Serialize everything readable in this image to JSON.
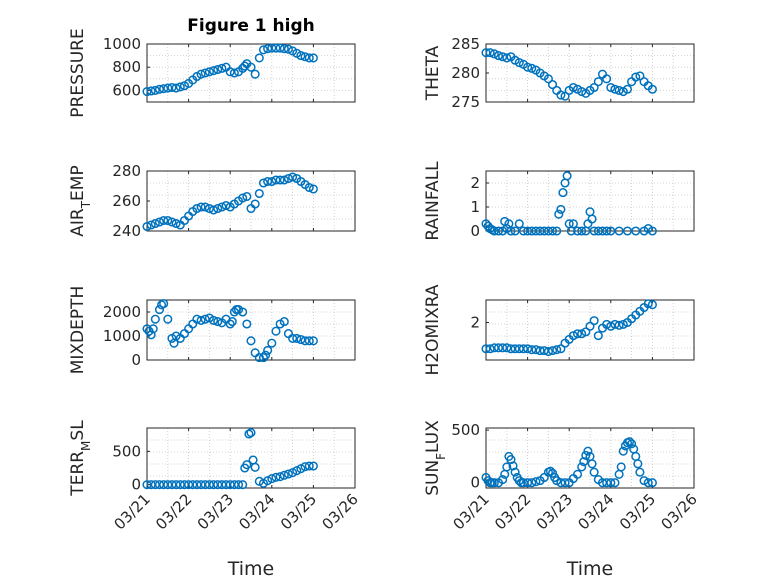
{
  "figure": {
    "title": "Figure 1 high",
    "marker_color": "#0072bd",
    "axes_color": "#262626",
    "grid_color": "#c8c8c8"
  },
  "chart_data": [
    {
      "type": "scatter",
      "ylabel": "PRESSURE",
      "ylim": [
        500,
        1000
      ],
      "yticks": [
        600,
        800,
        1000
      ],
      "xlim": [
        0,
        5
      ],
      "xticks": [],
      "title": "Figure 1 high",
      "series": [
        {
          "name": "PRESSURE",
          "x": [
            0,
            0.1,
            0.2,
            0.3,
            0.4,
            0.5,
            0.6,
            0.7,
            0.8,
            0.9,
            1.0,
            1.1,
            1.2,
            1.3,
            1.4,
            1.5,
            1.6,
            1.7,
            1.8,
            1.9,
            2.0,
            2.1,
            2.2,
            2.3,
            2.35,
            2.4,
            2.5,
            2.6,
            2.7,
            2.8,
            2.9,
            3.0,
            3.1,
            3.2,
            3.3,
            3.4,
            3.5,
            3.6,
            3.7,
            3.8,
            3.9,
            4.0
          ],
          "y": [
            590,
            595,
            600,
            610,
            615,
            620,
            625,
            620,
            630,
            640,
            660,
            690,
            720,
            740,
            750,
            760,
            770,
            780,
            790,
            800,
            760,
            750,
            760,
            790,
            810,
            830,
            800,
            740,
            880,
            950,
            960,
            965,
            965,
            965,
            960,
            955,
            940,
            920,
            900,
            890,
            880,
            880
          ]
        }
      ]
    },
    {
      "type": "scatter",
      "ylabel": "THETA",
      "ylim": [
        275,
        285
      ],
      "yticks": [
        275,
        280,
        285
      ],
      "xlim": [
        0,
        5
      ],
      "xticks": [],
      "series": [
        {
          "name": "THETA",
          "x": [
            0,
            0.1,
            0.2,
            0.3,
            0.4,
            0.5,
            0.6,
            0.7,
            0.8,
            0.9,
            1.0,
            1.1,
            1.2,
            1.3,
            1.4,
            1.5,
            1.6,
            1.7,
            1.8,
            1.9,
            2.0,
            2.1,
            2.2,
            2.3,
            2.4,
            2.5,
            2.6,
            2.7,
            2.8,
            2.9,
            3.0,
            3.1,
            3.2,
            3.3,
            3.4,
            3.5,
            3.6,
            3.7,
            3.8,
            3.9,
            4.0
          ],
          "y": [
            283.5,
            283.5,
            283.3,
            283.0,
            282.8,
            282.6,
            282.8,
            282.2,
            281.8,
            281.5,
            281.0,
            280.8,
            280.5,
            280.0,
            279.5,
            279.0,
            278.0,
            277.0,
            276.2,
            276.0,
            277.0,
            277.5,
            277.2,
            276.8,
            276.5,
            277.0,
            277.5,
            278.5,
            279.8,
            279.0,
            277.5,
            277.2,
            277.0,
            276.8,
            277.2,
            278.5,
            279.3,
            279.5,
            278.5,
            277.8,
            277.2
          ]
        }
      ]
    },
    {
      "type": "scatter",
      "ylabel": "AIR",
      "ylabel_sub": "T",
      "ylabel_tail": "EMP",
      "ylim": [
        240,
        280
      ],
      "yticks": [
        240,
        260,
        280
      ],
      "xlim": [
        0,
        5
      ],
      "xticks": [],
      "series": [
        {
          "name": "AIR_TEMP",
          "x": [
            0,
            0.1,
            0.2,
            0.3,
            0.4,
            0.5,
            0.6,
            0.7,
            0.8,
            0.9,
            1.0,
            1.1,
            1.2,
            1.3,
            1.4,
            1.5,
            1.6,
            1.7,
            1.8,
            1.9,
            2.0,
            2.1,
            2.2,
            2.3,
            2.4,
            2.5,
            2.6,
            2.7,
            2.8,
            2.9,
            3.0,
            3.1,
            3.2,
            3.3,
            3.4,
            3.5,
            3.6,
            3.7,
            3.8,
            3.9,
            4.0
          ],
          "y": [
            243,
            244,
            245,
            246,
            247,
            247,
            246,
            245,
            244,
            247,
            250,
            253,
            255,
            256,
            256,
            255,
            254,
            255,
            256,
            257,
            256,
            258,
            260,
            262,
            263,
            255,
            258,
            265,
            272,
            273,
            273,
            274,
            274,
            274,
            275,
            276,
            275,
            273,
            271,
            269,
            268
          ]
        }
      ]
    },
    {
      "type": "scatter",
      "ylabel": "RAINFALL",
      "ylim": [
        0,
        2.5
      ],
      "yticks": [
        0,
        1,
        2
      ],
      "xlim": [
        0,
        5
      ],
      "xticks": [],
      "series": [
        {
          "name": "RAINFALL",
          "x": [
            0,
            0.05,
            0.1,
            0.15,
            0.2,
            0.3,
            0.4,
            0.45,
            0.5,
            0.55,
            0.6,
            0.7,
            0.8,
            0.9,
            1.0,
            1.1,
            1.2,
            1.3,
            1.4,
            1.5,
            1.6,
            1.7,
            1.75,
            1.8,
            1.85,
            1.9,
            1.95,
            2.0,
            2.05,
            2.1,
            2.2,
            2.3,
            2.4,
            2.45,
            2.5,
            2.55,
            2.6,
            2.7,
            2.8,
            2.9,
            3.0,
            3.2,
            3.4,
            3.6,
            3.8,
            3.9,
            4.0
          ],
          "y": [
            0.3,
            0.2,
            0.1,
            0.05,
            0.0,
            0.0,
            0.0,
            0.4,
            0.1,
            0.3,
            0.0,
            0.0,
            0.3,
            0.0,
            0.0,
            0.0,
            0.0,
            0.0,
            0.0,
            0.0,
            0.0,
            0.0,
            0.7,
            0.9,
            1.6,
            2.0,
            2.3,
            0.3,
            0.0,
            0.3,
            0.0,
            0.0,
            0.0,
            0.3,
            0.8,
            0.5,
            0.0,
            0.0,
            0.0,
            0.0,
            0.0,
            0.0,
            0.0,
            0.0,
            0.0,
            0.1,
            0.0
          ]
        }
      ]
    },
    {
      "type": "scatter",
      "ylabel": "MIXDEPTH",
      "ylim": [
        0,
        2500
      ],
      "yticks": [
        0,
        1000,
        2000
      ],
      "xlim": [
        0,
        5
      ],
      "xticks": [],
      "series": [
        {
          "name": "MIXDEPTH",
          "x": [
            0,
            0.05,
            0.1,
            0.15,
            0.2,
            0.3,
            0.35,
            0.4,
            0.5,
            0.6,
            0.65,
            0.7,
            0.8,
            0.9,
            1.0,
            1.1,
            1.2,
            1.3,
            1.4,
            1.5,
            1.6,
            1.7,
            1.8,
            1.9,
            2.0,
            2.05,
            2.1,
            2.15,
            2.2,
            2.3,
            2.4,
            2.5,
            2.6,
            2.7,
            2.8,
            2.85,
            2.9,
            3.0,
            3.1,
            3.2,
            3.3,
            3.4,
            3.5,
            3.6,
            3.7,
            3.8,
            3.9,
            4.0
          ],
          "y": [
            1300,
            1200,
            1050,
            1300,
            1700,
            2100,
            2300,
            2350,
            1700,
            900,
            700,
            1000,
            900,
            1100,
            1300,
            1500,
            1700,
            1650,
            1700,
            1750,
            1650,
            1600,
            1550,
            1700,
            1500,
            1600,
            2000,
            2100,
            2100,
            2000,
            1500,
            800,
            300,
            100,
            100,
            200,
            400,
            700,
            1200,
            1500,
            1600,
            1100,
            900,
            900,
            850,
            800,
            800,
            800
          ]
        }
      ]
    },
    {
      "type": "scatter",
      "ylabel": "H2OMIXRA",
      "ylim": [
        0,
        3.2
      ],
      "yticks": [
        2
      ],
      "xlim": [
        0,
        5
      ],
      "xticks": [],
      "series": [
        {
          "name": "H2OMIXRA",
          "x": [
            0,
            0.1,
            0.2,
            0.3,
            0.4,
            0.5,
            0.6,
            0.7,
            0.8,
            0.9,
            1.0,
            1.1,
            1.2,
            1.3,
            1.4,
            1.5,
            1.6,
            1.7,
            1.8,
            1.9,
            2.0,
            2.1,
            2.2,
            2.3,
            2.4,
            2.5,
            2.6,
            2.7,
            2.8,
            2.9,
            3.0,
            3.1,
            3.2,
            3.3,
            3.4,
            3.5,
            3.6,
            3.7,
            3.8,
            3.9,
            4.0
          ],
          "y": [
            0.6,
            0.6,
            0.65,
            0.65,
            0.65,
            0.65,
            0.6,
            0.6,
            0.6,
            0.6,
            0.6,
            0.55,
            0.55,
            0.5,
            0.5,
            0.45,
            0.5,
            0.55,
            0.6,
            0.9,
            1.1,
            1.3,
            1.4,
            1.4,
            1.5,
            1.8,
            2.1,
            1.3,
            1.7,
            1.9,
            1.8,
            1.9,
            1.85,
            1.9,
            2.0,
            2.2,
            2.4,
            2.6,
            2.8,
            3.0,
            2.95
          ]
        }
      ]
    },
    {
      "type": "scatter",
      "ylabel": "TERR",
      "ylabel_sub": "M",
      "ylabel_tail": "SL",
      "ylim": [
        -50,
        850
      ],
      "yticks": [
        0,
        500
      ],
      "xlim": [
        0,
        5
      ],
      "xticks": [
        0,
        1,
        2,
        3,
        4,
        5
      ],
      "xticklabels": [
        "03/21",
        "03/22",
        "03/23",
        "03/24",
        "03/25",
        "03/26"
      ],
      "xlabel": "Time",
      "series": [
        {
          "name": "TERR_MSL",
          "x": [
            0,
            0.1,
            0.2,
            0.3,
            0.4,
            0.5,
            0.6,
            0.7,
            0.8,
            0.9,
            1.0,
            1.1,
            1.2,
            1.3,
            1.4,
            1.5,
            1.6,
            1.7,
            1.8,
            1.9,
            2.0,
            2.1,
            2.2,
            2.3,
            2.35,
            2.4,
            2.45,
            2.5,
            2.55,
            2.6,
            2.7,
            2.8,
            2.9,
            3.0,
            3.1,
            3.2,
            3.3,
            3.4,
            3.5,
            3.6,
            3.7,
            3.8,
            3.9,
            4.0
          ],
          "y": [
            0,
            0,
            0,
            0,
            0,
            0,
            0,
            0,
            0,
            0,
            0,
            0,
            0,
            0,
            0,
            0,
            0,
            0,
            0,
            0,
            0,
            0,
            0,
            0,
            250,
            300,
            760,
            780,
            370,
            260,
            50,
            20,
            60,
            90,
            110,
            120,
            140,
            160,
            180,
            210,
            240,
            270,
            280,
            280
          ]
        }
      ]
    },
    {
      "type": "scatter",
      "ylabel": "SUN",
      "ylabel_sub": "F",
      "ylabel_tail": "LUX",
      "ylim": [
        -50,
        520
      ],
      "yticks": [
        0,
        500
      ],
      "xlim": [
        0,
        5
      ],
      "xticks": [
        0,
        1,
        2,
        3,
        4,
        5
      ],
      "xticklabels": [
        "03/21",
        "03/22",
        "03/23",
        "03/24",
        "03/25",
        "03/26"
      ],
      "xlabel": "Time",
      "series": [
        {
          "name": "SUN_FLUX",
          "x": [
            0,
            0.05,
            0.1,
            0.15,
            0.2,
            0.3,
            0.4,
            0.45,
            0.5,
            0.55,
            0.6,
            0.65,
            0.7,
            0.75,
            0.8,
            0.85,
            0.9,
            1.0,
            1.1,
            1.2,
            1.3,
            1.4,
            1.5,
            1.55,
            1.6,
            1.65,
            1.7,
            1.8,
            1.9,
            2.0,
            2.1,
            2.2,
            2.3,
            2.35,
            2.4,
            2.45,
            2.5,
            2.55,
            2.6,
            2.7,
            2.8,
            2.9,
            3.0,
            3.1,
            3.2,
            3.25,
            3.3,
            3.35,
            3.4,
            3.45,
            3.5,
            3.55,
            3.6,
            3.65,
            3.7,
            3.8,
            3.9,
            4.0
          ],
          "y": [
            50,
            20,
            0,
            0,
            0,
            0,
            30,
            80,
            150,
            250,
            220,
            160,
            100,
            50,
            20,
            0,
            0,
            0,
            0,
            10,
            20,
            50,
            100,
            110,
            90,
            50,
            20,
            0,
            0,
            0,
            40,
            80,
            150,
            200,
            260,
            300,
            250,
            180,
            100,
            30,
            0,
            0,
            0,
            0,
            80,
            150,
            300,
            350,
            380,
            390,
            370,
            320,
            250,
            180,
            100,
            20,
            0,
            0
          ]
        }
      ]
    }
  ]
}
